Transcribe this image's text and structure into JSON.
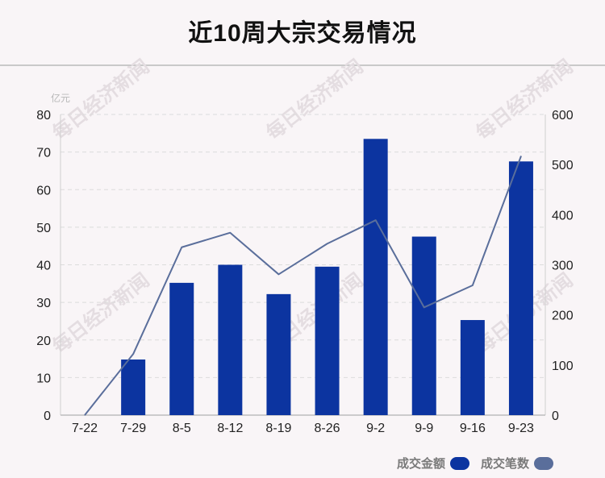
{
  "header": {
    "title": "近10周大宗交易情况"
  },
  "watermark": "每日经济新闻",
  "chart_data": {
    "type": "bar+line",
    "title": "近10周大宗交易情况",
    "categories": [
      "7-22",
      "7-29",
      "8-5",
      "8-12",
      "8-19",
      "8-26",
      "9-2",
      "9-9",
      "9-16",
      "9-23"
    ],
    "y_left": {
      "unit": "亿元",
      "lim": [
        0,
        80
      ],
      "ticks": [
        0,
        10,
        20,
        30,
        40,
        50,
        60,
        70,
        80
      ]
    },
    "y_right": {
      "lim": [
        0,
        600
      ],
      "ticks": [
        0,
        100,
        200,
        300,
        400,
        500,
        600
      ]
    },
    "series": [
      {
        "name": "成交金额",
        "type": "bar",
        "axis": "left",
        "color": "#0c34a0",
        "values": [
          0,
          14.8,
          35.2,
          40.0,
          32.2,
          39.5,
          73.5,
          47.5,
          25.3,
          67.5
        ]
      },
      {
        "name": "成交笔数",
        "type": "line",
        "axis": "right",
        "color": "#5a6e9b",
        "values": [
          0,
          122,
          335,
          364,
          281,
          342,
          389,
          215,
          259,
          517
        ]
      }
    ],
    "grid": true,
    "legend": "bottom-right"
  }
}
